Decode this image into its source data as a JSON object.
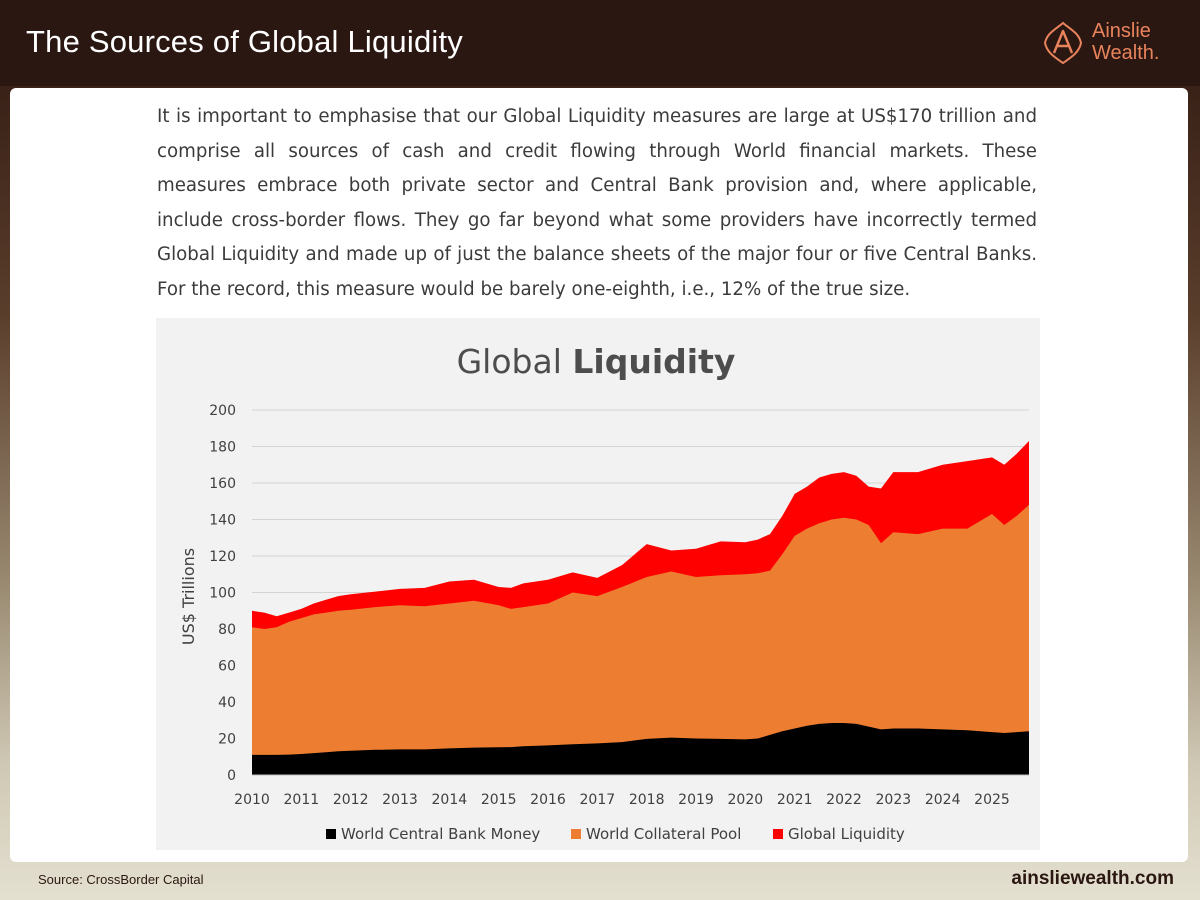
{
  "header": {
    "title": "The Sources of Global Liquidity",
    "logo_line1": "Ainslie",
    "logo_line2": "Wealth."
  },
  "intro_text": "It is important to emphasise that our Global Liquidity measures are large at US$170 trillion and comprise all sources of cash and credit flowing through World financial markets. These measures embrace both private sector and Central Bank provision and, where applicable, include cross-border flows. They go far beyond what some providers have incorrectly termed Global Liquidity and made up of just the balance sheets of the major four or five Central Banks. For the record, this measure would be barely one-eighth, i.e., 12% of the true size.",
  "footer": {
    "source": "Source: CrossBorder Capital",
    "website": "ainsliewealth.com"
  },
  "colors": {
    "central_bank": "#000000",
    "collateral": "#ed7d31",
    "global_liquidity": "#ff0000",
    "brand": "#e8835c"
  },
  "chart_data": {
    "type": "area",
    "stacked": false,
    "title_regular": "Global",
    "title_bold": "Liquidity",
    "ylabel": "US$ Trillions",
    "xlabel": "",
    "ylim": [
      0,
      200
    ],
    "xlim": [
      2010,
      2025.75
    ],
    "yticks": [
      0,
      20,
      40,
      60,
      80,
      100,
      120,
      140,
      160,
      180,
      200
    ],
    "xticks": [
      2010,
      2011,
      2012,
      2013,
      2014,
      2015,
      2016,
      2017,
      2018,
      2019,
      2020,
      2021,
      2022,
      2023,
      2024,
      2025
    ],
    "grid": true,
    "legend_position": "bottom",
    "x": [
      2010,
      2010.25,
      2010.5,
      2010.75,
      2011,
      2011.25,
      2011.5,
      2011.75,
      2012,
      2012.5,
      2013,
      2013.5,
      2014,
      2014.5,
      2015,
      2015.25,
      2015.5,
      2016,
      2016.5,
      2017,
      2017.5,
      2018,
      2018.5,
      2019,
      2019.5,
      2020,
      2020.25,
      2020.5,
      2020.75,
      2021,
      2021.25,
      2021.5,
      2021.75,
      2022,
      2022.25,
      2022.5,
      2022.75,
      2023,
      2023.5,
      2024,
      2024.5,
      2025,
      2025.25,
      2025.5,
      2025.75
    ],
    "series": [
      {
        "name": "World Central Bank Money",
        "values": [
          11,
          11,
          11,
          11.2,
          11.5,
          12,
          12.5,
          13,
          13.3,
          13.8,
          14,
          14,
          14.6,
          15,
          15.2,
          15.3,
          15.7,
          16.2,
          16.8,
          17.3,
          18,
          19.8,
          20.5,
          20,
          19.8,
          19.5,
          20,
          22,
          24,
          25.5,
          27,
          28,
          28.5,
          28.5,
          28,
          26.5,
          25,
          25.5,
          25.5,
          25,
          24.5,
          23.5,
          23,
          23.5,
          24
        ]
      },
      {
        "name": "World Collateral Pool",
        "values": [
          81,
          80,
          81,
          84,
          86,
          88,
          89,
          90,
          90.5,
          92,
          93,
          92.5,
          94,
          95.5,
          93,
          91,
          92,
          94,
          100,
          98,
          103,
          108.5,
          111.5,
          108.5,
          109.5,
          110,
          110.5,
          112,
          121,
          131,
          135,
          138,
          140,
          141,
          140,
          137,
          127,
          133,
          132,
          135,
          135,
          143,
          137,
          142,
          148
        ]
      },
      {
        "name": "Global Liquidity",
        "values": [
          90,
          89,
          87,
          89,
          91,
          94,
          96,
          98,
          99,
          100.5,
          102,
          102.5,
          106,
          107,
          103,
          102.5,
          105,
          107,
          111,
          108,
          115,
          126.5,
          123,
          124,
          128,
          127.5,
          129,
          132,
          142,
          154,
          158,
          163,
          165,
          166,
          164,
          158,
          157,
          166,
          166,
          170,
          172,
          174,
          170,
          176,
          183
        ]
      }
    ]
  }
}
